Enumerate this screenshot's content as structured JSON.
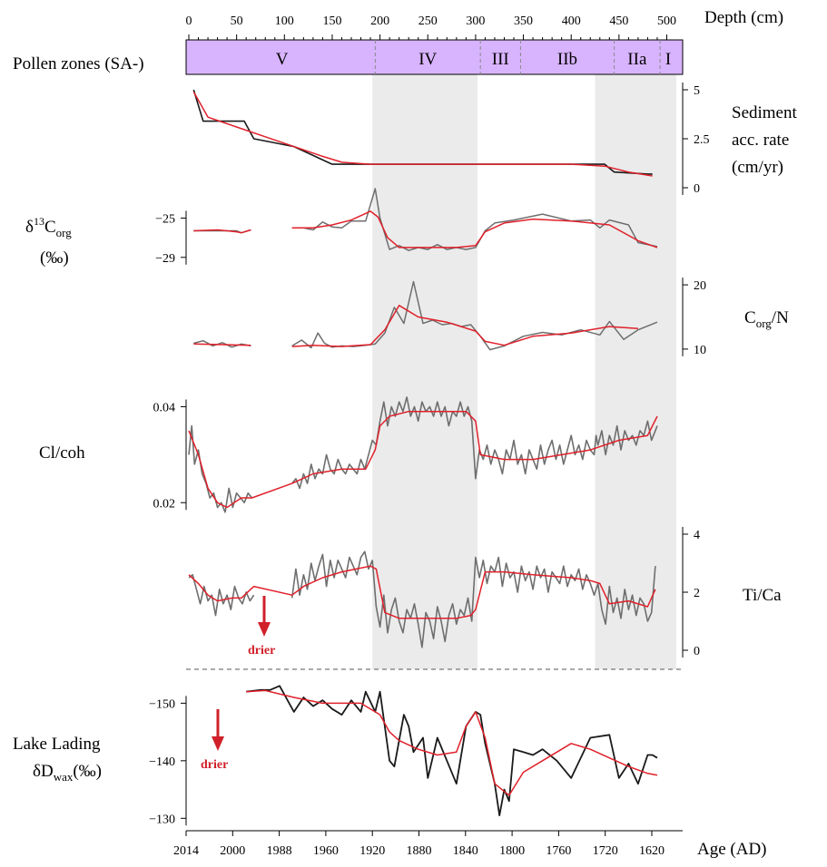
{
  "chart_data": {
    "type": "line",
    "depth_axis": {
      "label": "Depth (cm)",
      "ticks": [
        0,
        50,
        100,
        150,
        200,
        250,
        300,
        350,
        400,
        450,
        500
      ],
      "range": [
        0,
        500
      ]
    },
    "age_axis": {
      "label": "Age (AD)",
      "tick_labels": [
        "2014",
        "2000",
        "1988",
        "1960",
        "1920",
        "1880",
        "1840",
        "1800",
        "1760",
        "1720",
        "1620"
      ]
    },
    "pollen_zones": {
      "label": "Pollen zones (SA-)",
      "zones": [
        {
          "name": "V",
          "start": 0,
          "end": 195
        },
        {
          "name": "IV",
          "start": 195,
          "end": 305
        },
        {
          "name": "III",
          "start": 305,
          "end": 347
        },
        {
          "name": "IIb",
          "start": 347,
          "end": 445
        },
        {
          "name": "IIa",
          "start": 445,
          "end": 493
        },
        {
          "name": "I",
          "start": 493,
          "end": 510
        }
      ]
    },
    "shaded_depth_intervals": [
      [
        192,
        302
      ],
      [
        425,
        510
      ]
    ],
    "panels": {
      "sediment_acc_rate": {
        "label_lines": [
          "Sediment",
          "acc. rate",
          "(cm/yr)"
        ],
        "ticks": [
          "0",
          "2.5",
          "5"
        ],
        "range": [
          0,
          5
        ],
        "raw_x": [
          5,
          15,
          58,
          68,
          110,
          150,
          175,
          205,
          255,
          300,
          350,
          400,
          435,
          445,
          480,
          485
        ],
        "raw_y": [
          5.0,
          3.4,
          3.4,
          2.5,
          2.1,
          1.2,
          1.2,
          1.2,
          1.2,
          1.2,
          1.2,
          1.2,
          1.2,
          0.8,
          0.7,
          0.7
        ],
        "smooth_x": [
          5,
          20,
          50,
          80,
          110,
          140,
          160,
          190,
          250,
          300,
          350,
          400,
          435,
          460,
          485
        ],
        "smooth_y": [
          4.9,
          3.6,
          3.1,
          2.6,
          2.1,
          1.6,
          1.3,
          1.2,
          1.2,
          1.2,
          1.2,
          1.2,
          1.1,
          0.8,
          0.6
        ]
      },
      "d13c": {
        "label_main": "δ",
        "label_sup": "13",
        "label_c": "C",
        "label_sub": "org",
        "label_unit": "(‰)",
        "ticks": [
          "−25",
          "−29"
        ],
        "range": [
          -30.5,
          -22
        ],
        "raw_x": [
          5,
          50,
          55,
          65,
          108,
          120,
          130,
          140,
          150,
          160,
          170,
          185,
          195,
          200,
          210,
          220,
          230,
          240,
          250,
          260,
          270,
          280,
          290,
          300,
          310,
          320,
          340,
          370,
          400,
          420,
          430,
          440,
          460,
          470,
          490
        ],
        "raw_y": [
          -26.3,
          -26.3,
          -26.5,
          -26.2,
          -26.0,
          -26.0,
          -26.2,
          -25.4,
          -25.9,
          -26.0,
          -25.3,
          -25.3,
          -22.0,
          -25.0,
          -28.2,
          -27.8,
          -28.3,
          -28.0,
          -28.2,
          -27.7,
          -28.2,
          -28.0,
          -28.2,
          -28.0,
          -26.3,
          -25.5,
          -25.2,
          -24.6,
          -25.3,
          -25.2,
          -26.0,
          -25.2,
          -25.7,
          -27.5,
          -27.9
        ],
        "smooth_x": [
          5,
          30,
          50,
          55,
          65,
          108,
          130,
          150,
          170,
          190,
          198,
          208,
          220,
          250,
          280,
          300,
          310,
          330,
          360,
          400,
          440,
          470,
          490
        ],
        "smooth_y": [
          -26.3,
          -26.2,
          -26.4,
          -26.5,
          -26.2,
          -26.0,
          -26.0,
          -25.7,
          -25.2,
          -24.3,
          -24.9,
          -27.0,
          -28.0,
          -28.0,
          -28.0,
          -27.8,
          -26.4,
          -25.5,
          -25.1,
          -25.3,
          -25.7,
          -27.3,
          -28.0
        ],
        "gap": [
          65,
          108
        ]
      },
      "corg_n": {
        "label_main": "C",
        "label_sub": "org",
        "label_tail": "/N",
        "ticks": [
          "10",
          "20"
        ],
        "range": [
          9,
          21
        ],
        "raw_x": [
          5,
          15,
          25,
          35,
          45,
          55,
          65,
          108,
          118,
          128,
          135,
          142,
          150,
          160,
          172,
          185,
          195,
          205,
          215,
          225,
          235,
          245,
          255,
          265,
          275,
          285,
          295,
          305,
          315,
          330,
          350,
          370,
          390,
          410,
          430,
          440,
          455,
          470,
          490
        ],
        "raw_y": [
          10.9,
          11.3,
          10.5,
          11.0,
          10.3,
          10.8,
          10.5,
          10.5,
          11.4,
          10.2,
          12.5,
          10.9,
          10.3,
          10.5,
          10.4,
          10.6,
          10.8,
          12.5,
          16.5,
          14.0,
          20.5,
          14.0,
          14.5,
          13.8,
          14.0,
          13.5,
          13.8,
          12.0,
          9.9,
          10.5,
          12.0,
          12.6,
          12.2,
          13.0,
          12.2,
          14.3,
          11.5,
          13.0,
          14.2
        ],
        "smooth_x": [
          5,
          35,
          65,
          108,
          130,
          160,
          190,
          205,
          220,
          240,
          270,
          300,
          310,
          330,
          360,
          400,
          440,
          470
        ],
        "smooth_y": [
          10.8,
          10.7,
          10.6,
          10.4,
          10.6,
          10.4,
          10.7,
          13.0,
          16.8,
          15.0,
          14.2,
          12.8,
          11.2,
          10.6,
          12.0,
          12.5,
          13.5,
          13.2
        ],
        "gap": [
          65,
          108
        ]
      },
      "cl_coh": {
        "label": "Cl/coh",
        "ticks": [
          "0.04",
          "0.02"
        ],
        "range": [
          0.014,
          0.045
        ],
        "raw_x": [
          0,
          3,
          6,
          10,
          14,
          18,
          22,
          26,
          30,
          34,
          38,
          42,
          46,
          50,
          54,
          58,
          62,
          66,
          108,
          112,
          116,
          120,
          124,
          128,
          132,
          136,
          140,
          144,
          148,
          152,
          156,
          160,
          164,
          168,
          172,
          176,
          180,
          184,
          188,
          192,
          196,
          200,
          204,
          208,
          212,
          216,
          220,
          224,
          228,
          232,
          236,
          240,
          244,
          248,
          252,
          256,
          260,
          264,
          268,
          272,
          276,
          280,
          284,
          288,
          292,
          296,
          300,
          304,
          308,
          312,
          316,
          320,
          324,
          328,
          332,
          336,
          340,
          344,
          348,
          352,
          356,
          360,
          364,
          368,
          372,
          376,
          380,
          384,
          388,
          392,
          396,
          400,
          404,
          408,
          412,
          416,
          420,
          424,
          426,
          428,
          432,
          436,
          440,
          444,
          448,
          452,
          456,
          460,
          464,
          468,
          472,
          476,
          480,
          484,
          488,
          490
        ],
        "raw_y": [
          0.03,
          0.036,
          0.028,
          0.031,
          0.026,
          0.024,
          0.021,
          0.022,
          0.019,
          0.02,
          0.018,
          0.023,
          0.019,
          0.022,
          0.021,
          0.02,
          0.022,
          0.021,
          0.024,
          0.025,
          0.023,
          0.026,
          0.024,
          0.028,
          0.025,
          0.027,
          0.026,
          0.03,
          0.027,
          0.026,
          0.029,
          0.027,
          0.026,
          0.028,
          0.027,
          0.026,
          0.029,
          0.027,
          0.03,
          0.033,
          0.032,
          0.037,
          0.041,
          0.036,
          0.04,
          0.038,
          0.041,
          0.039,
          0.042,
          0.038,
          0.04,
          0.037,
          0.041,
          0.039,
          0.04,
          0.038,
          0.041,
          0.038,
          0.04,
          0.036,
          0.039,
          0.038,
          0.041,
          0.038,
          0.04,
          0.037,
          0.025,
          0.031,
          0.029,
          0.032,
          0.028,
          0.031,
          0.029,
          0.026,
          0.031,
          0.029,
          0.033,
          0.028,
          0.03,
          0.026,
          0.031,
          0.029,
          0.027,
          0.032,
          0.028,
          0.031,
          0.033,
          0.029,
          0.032,
          0.028,
          0.031,
          0.034,
          0.03,
          0.032,
          0.029,
          0.033,
          0.031,
          0.03,
          0.034,
          0.032,
          0.035,
          0.03,
          0.034,
          0.032,
          0.036,
          0.031,
          0.035,
          0.033,
          0.034,
          0.032,
          0.035,
          0.034,
          0.037,
          0.033,
          0.035,
          0.036,
          0.034,
          0.037,
          0.035,
          0.038
        ],
        "smooth_x": [
          0,
          10,
          20,
          30,
          40,
          55,
          66,
          108,
          130,
          160,
          185,
          195,
          200,
          210,
          230,
          260,
          290,
          300,
          305,
          330,
          360,
          390,
          420,
          450,
          480,
          490
        ],
        "smooth_y": [
          0.035,
          0.03,
          0.023,
          0.02,
          0.019,
          0.021,
          0.021,
          0.024,
          0.026,
          0.027,
          0.027,
          0.031,
          0.036,
          0.038,
          0.039,
          0.039,
          0.039,
          0.037,
          0.03,
          0.029,
          0.029,
          0.03,
          0.031,
          0.033,
          0.034,
          0.038
        ],
        "gap": [
          66,
          108
        ]
      },
      "ti_ca": {
        "label": "Ti/Ca",
        "ticks": [
          "0",
          "2",
          "4"
        ],
        "range": [
          0,
          4
        ],
        "raw_x": [
          0,
          4,
          8,
          12,
          16,
          20,
          24,
          28,
          32,
          36,
          40,
          44,
          48,
          52,
          56,
          60,
          64,
          68,
          108,
          112,
          116,
          120,
          124,
          128,
          132,
          136,
          140,
          144,
          148,
          152,
          156,
          160,
          164,
          168,
          172,
          176,
          180,
          184,
          188,
          192,
          196,
          200,
          204,
          208,
          212,
          216,
          220,
          224,
          228,
          232,
          236,
          240,
          244,
          248,
          252,
          256,
          260,
          264,
          268,
          272,
          276,
          280,
          284,
          288,
          292,
          296,
          300,
          304,
          308,
          312,
          316,
          320,
          324,
          328,
          332,
          336,
          340,
          344,
          348,
          352,
          356,
          360,
          364,
          368,
          372,
          376,
          380,
          384,
          388,
          392,
          396,
          400,
          404,
          408,
          412,
          416,
          420,
          424,
          428,
          432,
          436,
          440,
          444,
          448,
          452,
          456,
          460,
          464,
          468,
          472,
          476,
          480,
          484,
          488
        ],
        "raw_y": [
          2.5,
          2.6,
          2.1,
          1.6,
          2.2,
          1.7,
          1.9,
          1.2,
          2.1,
          1.6,
          1.9,
          1.4,
          2.2,
          1.8,
          1.6,
          2.0,
          1.7,
          1.9,
          1.8,
          2.8,
          1.9,
          2.6,
          2.1,
          3.0,
          2.4,
          2.9,
          3.3,
          2.2,
          3.1,
          2.5,
          3.1,
          2.8,
          2.5,
          3.2,
          2.9,
          2.6,
          3.2,
          3.4,
          2.8,
          3.1,
          1.5,
          0.8,
          1.9,
          0.6,
          1.4,
          1.8,
          1.0,
          0.6,
          1.4,
          1.1,
          1.6,
          0.9,
          0.1,
          1.3,
          1.0,
          0.4,
          1.5,
          1.0,
          0.3,
          1.2,
          1.6,
          0.9,
          1.4,
          1.2,
          1.8,
          1.0,
          3.2,
          2.5,
          3.1,
          2.3,
          2.9,
          2.7,
          3.2,
          2.2,
          3.0,
          2.5,
          2.7,
          2.0,
          2.9,
          2.4,
          2.7,
          2.1,
          2.9,
          2.5,
          2.8,
          2.0,
          2.7,
          2.5,
          2.3,
          2.9,
          2.2,
          2.6,
          2.4,
          2.8,
          2.1,
          2.6,
          2.3,
          1.9,
          2.3,
          1.4,
          0.9,
          2.2,
          1.3,
          1.8,
          1.1,
          2.1,
          1.4,
          1.9,
          1.2,
          1.8,
          1.6,
          1.0,
          1.3,
          2.9
        ],
        "smooth_x": [
          0,
          10,
          20,
          30,
          45,
          55,
          68,
          108,
          120,
          140,
          160,
          175,
          190,
          196,
          205,
          220,
          250,
          280,
          295,
          300,
          310,
          330,
          360,
          400,
          420,
          430,
          440,
          460,
          480,
          488
        ],
        "smooth_y": [
          2.6,
          2.3,
          1.9,
          1.7,
          1.8,
          1.8,
          2.2,
          1.9,
          2.2,
          2.5,
          2.7,
          2.8,
          2.9,
          2.8,
          1.3,
          1.1,
          1.1,
          1.1,
          1.2,
          1.4,
          2.7,
          2.7,
          2.6,
          2.5,
          2.4,
          2.3,
          1.6,
          1.7,
          1.5,
          2.1
        ],
        "gap": [
          68,
          108
        ]
      },
      "dd_wax": {
        "label_line1": "Lake Lading",
        "label_line2_main": "δD",
        "label_line2_sub": "wax",
        "label_line2_unit": "(‰)",
        "ticks": [
          "−150",
          "−140",
          "−130"
        ],
        "range": [
          -154,
          -128
        ],
        "raw_x": [
          60,
          75,
          85,
          95,
          110,
          120,
          130,
          140,
          150,
          160,
          170,
          180,
          185,
          195,
          200,
          210,
          215,
          225,
          230,
          235,
          245,
          250,
          260,
          270,
          280,
          290,
          300,
          305,
          310,
          320,
          325,
          330,
          335,
          340,
          350,
          360,
          370,
          385,
          400,
          420,
          440,
          450,
          460,
          470,
          480,
          485,
          490
        ],
        "raw_y": [
          -152.0,
          -152.3,
          -152.3,
          -153.0,
          -148.5,
          -151.0,
          -149.5,
          -150.5,
          -149.0,
          -148.0,
          -150.5,
          -148.5,
          -152.0,
          -148.5,
          -152.0,
          -140.0,
          -139.0,
          -148.0,
          -146.0,
          -141.5,
          -144.0,
          -137.0,
          -144.0,
          -140.0,
          -136.0,
          -146.0,
          -148.5,
          -148.0,
          -143.0,
          -136.0,
          -130.5,
          -135.0,
          -133.0,
          -142.0,
          -141.5,
          -141.0,
          -142.0,
          -140.0,
          -137.0,
          -144.0,
          -144.5,
          -137.0,
          -139.5,
          -136.0,
          -141.0,
          -141.0,
          -140.5
        ],
        "smooth_x": [
          60,
          80,
          110,
          140,
          160,
          180,
          200,
          210,
          220,
          240,
          260,
          280,
          290,
          300,
          310,
          320,
          335,
          350,
          370,
          400,
          420,
          440,
          460,
          480,
          490
        ],
        "smooth_y": [
          -152.0,
          -152.2,
          -151.0,
          -150.0,
          -150.0,
          -150.0,
          -148.0,
          -145.0,
          -143.5,
          -142.0,
          -141.0,
          -141.5,
          -146.0,
          -148.5,
          -144.0,
          -136.0,
          -134.0,
          -138.0,
          -140.0,
          -143.0,
          -142.0,
          -140.5,
          -139.0,
          -137.8,
          -137.5
        ]
      }
    },
    "annotations": [
      {
        "text": "drier",
        "panel": "ti_ca",
        "depth": 80
      },
      {
        "text": "drier",
        "panel": "dd_wax",
        "depth": 32
      }
    ],
    "colors": {
      "zone_band": "#d8b4ff",
      "shade": "#ebebeb",
      "raw_line": "#6e6e6e",
      "raw_line_dd": "#1a1a1a",
      "raw_line_acc": "#1a1a1a",
      "smooth_line": "#e0202a",
      "arrow": "#d0202a"
    }
  }
}
